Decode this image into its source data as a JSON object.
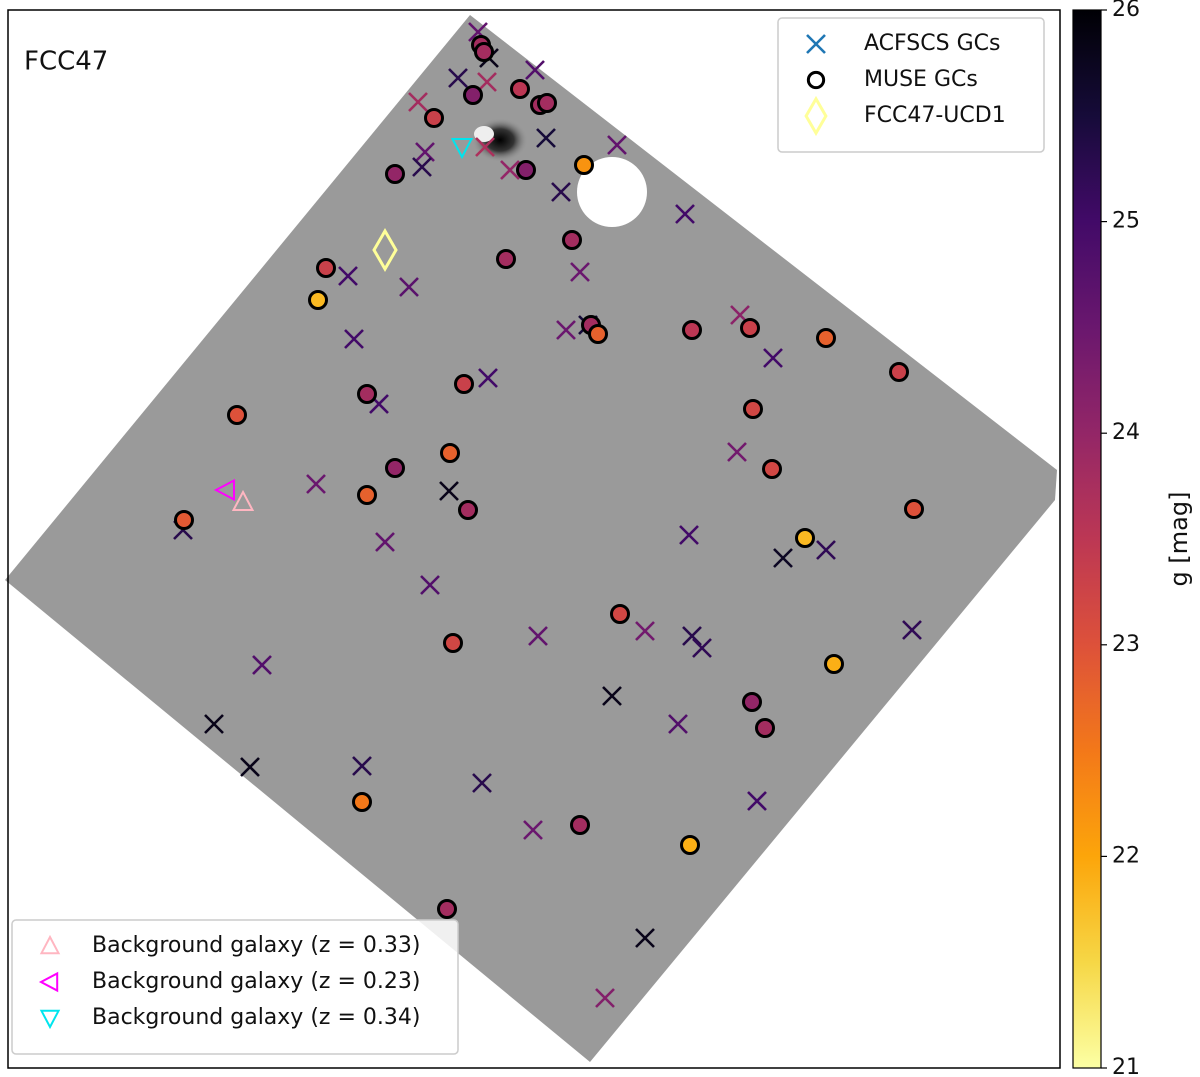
{
  "chart_data": {
    "type": "scatter",
    "title": "FCC47",
    "xlim": [
      0,
      1052
    ],
    "ylim": [
      1058,
      0
    ],
    "colorbar": {
      "label": "g [mag]",
      "clim": [
        21,
        26
      ],
      "ticks": [
        21,
        22,
        23,
        24,
        25,
        26
      ],
      "colormap": "inferno_r"
    },
    "series": [
      {
        "name": "ACFSCS GCs",
        "marker": "x",
        "color": "#1f77b4",
        "legend_loc": "upper right",
        "x": [
          470,
          481,
          527,
          450,
          479,
          410,
          538,
          477,
          417,
          414,
          502,
          553,
          609,
          677,
          340,
          401,
          572,
          558,
          580,
          732,
          346,
          765,
          480,
          371,
          729,
          308,
          441,
          175,
          377,
          681,
          775,
          818,
          422,
          530,
          637,
          684,
          694,
          904,
          254,
          604,
          206,
          670,
          242,
          354,
          474,
          749,
          525,
          637,
          597
        ],
        "y": [
          22,
          48,
          60,
          68,
          72,
          92,
          128,
          137,
          142,
          157,
          160,
          182,
          135,
          204,
          266,
          277,
          262,
          320,
          315,
          305,
          329,
          348,
          368,
          394,
          442,
          474,
          481,
          520,
          532,
          525,
          548,
          540,
          575,
          626,
          621,
          626,
          638,
          620,
          655,
          686,
          714,
          714,
          757,
          756,
          773,
          791,
          820,
          928,
          988
        ],
        "g": [
          24.6,
          25.8,
          24.8,
          25.3,
          23.8,
          23.8,
          25.5,
          23.7,
          24.6,
          25.3,
          24.0,
          25.3,
          24.6,
          25.0,
          25.0,
          24.7,
          24.5,
          24.5,
          25.5,
          24.1,
          25.0,
          25.0,
          25.0,
          25.0,
          24.4,
          24.5,
          25.8,
          25.3,
          24.6,
          25.0,
          25.7,
          25.2,
          24.8,
          24.6,
          24.4,
          25.3,
          25.2,
          25.2,
          24.8,
          25.8,
          25.8,
          24.8,
          25.8,
          25.3,
          25.3,
          25.0,
          24.5,
          25.8,
          24.2
        ]
      },
      {
        "name": "MUSE GCs",
        "marker": "o",
        "color": "#000000",
        "legend_loc": "upper right",
        "x": [
          473,
          476,
          465,
          512,
          532,
          539,
          426,
          387,
          518,
          576,
          564,
          498,
          318,
          310,
          583,
          590,
          684,
          742,
          818,
          891,
          456,
          359,
          229,
          745,
          442,
          387,
          764,
          359,
          460,
          906,
          176,
          797,
          612,
          445,
          826,
          744,
          757,
          354,
          572,
          682,
          439
        ],
        "y": [
          35,
          42,
          85,
          79,
          95,
          93,
          108,
          164,
          160,
          155,
          230,
          249,
          258,
          290,
          315,
          324,
          320,
          318,
          328,
          362,
          374,
          384,
          405,
          399,
          443,
          458,
          459,
          485,
          500,
          499,
          510,
          528,
          604,
          633,
          654,
          692,
          718,
          792,
          815,
          835,
          899
        ],
        "g": [
          23.8,
          23.8,
          24.2,
          23.5,
          23.8,
          23.8,
          23.3,
          24.0,
          24.2,
          22.2,
          23.8,
          23.8,
          23.3,
          21.8,
          23.8,
          22.8,
          23.5,
          23.3,
          22.8,
          23.3,
          23.3,
          23.8,
          23.0,
          23.2,
          22.8,
          24.0,
          23.2,
          22.8,
          23.8,
          23.0,
          22.9,
          21.8,
          23.2,
          23.2,
          21.9,
          24.0,
          23.8,
          22.5,
          23.8,
          21.9,
          23.8
        ]
      },
      {
        "name": "FCC47-UCD1",
        "marker": "D",
        "color": "#ffff99",
        "legend_loc": "upper right",
        "x": [
          377
        ],
        "y": [
          240
        ]
      },
      {
        "name": "Background galaxy (z = 0.33)",
        "marker": "^",
        "color": "#ffb6c1",
        "legend_loc": "lower left",
        "x": [
          235
        ],
        "y": [
          492
        ]
      },
      {
        "name": "Background galaxy (z = 0.23)",
        "marker": "<",
        "color": "#ff00ff",
        "legend_loc": "lower left",
        "x": [
          218
        ],
        "y": [
          480
        ]
      },
      {
        "name": "Background galaxy (z = 0.34)",
        "marker": "v",
        "color": "#00e5ee",
        "legend_loc": "lower left",
        "x": [
          454
        ],
        "y": [
          137
        ]
      }
    ]
  }
}
